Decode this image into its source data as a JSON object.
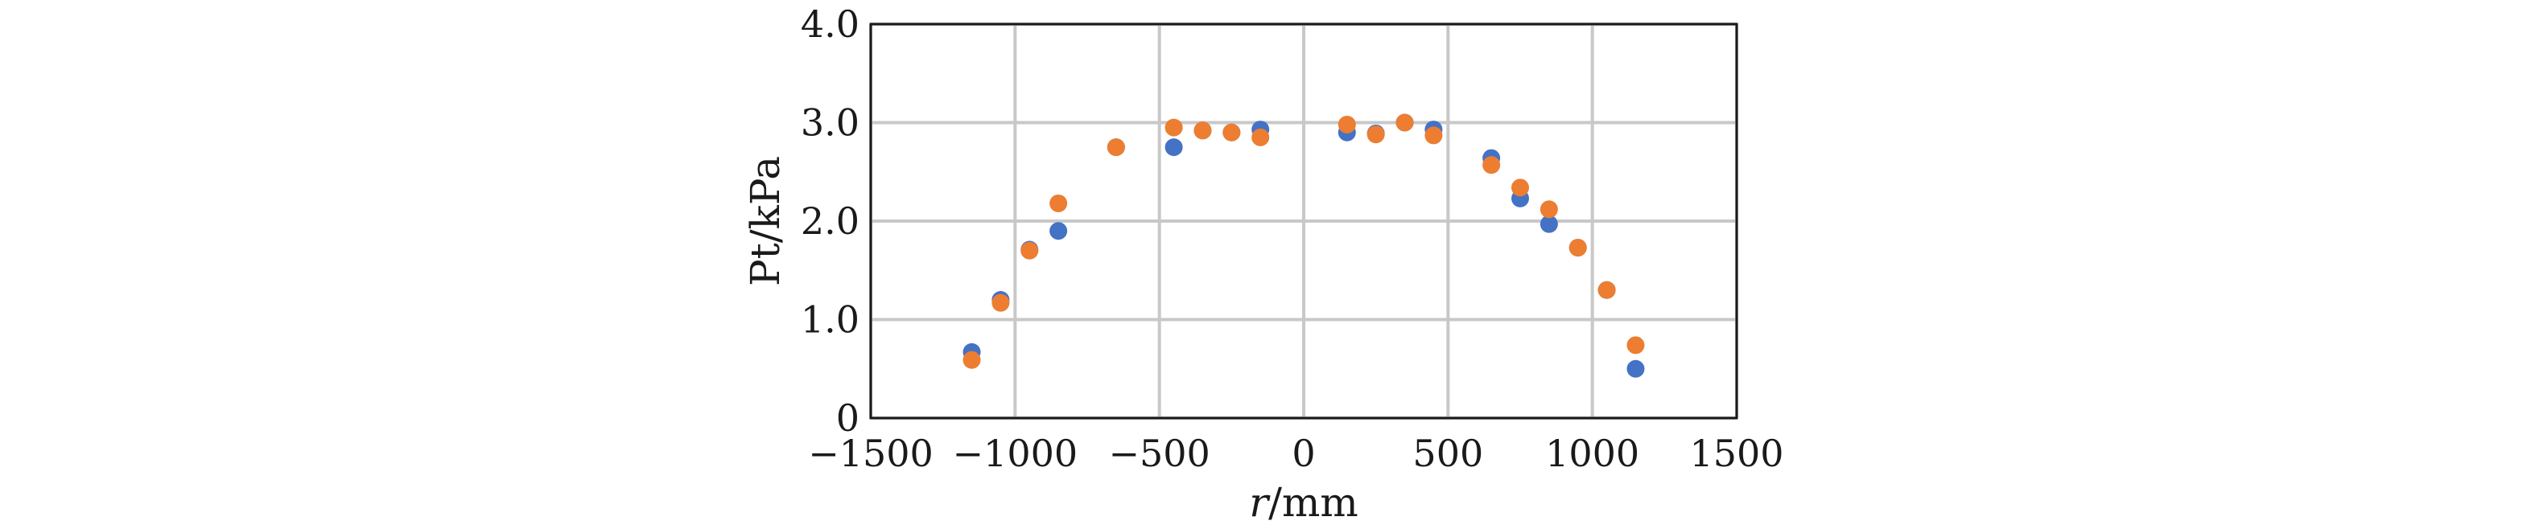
{
  "chart_data": {
    "type": "scatter",
    "title": "",
    "xlabel": "r/mm",
    "ylabel": "Pt/kPa",
    "xlim": [
      -1500,
      1500
    ],
    "ylim": [
      0,
      4
    ],
    "x_ticks": [
      -1500,
      -1000,
      -500,
      0,
      500,
      1000,
      1500
    ],
    "y_ticks": [
      0,
      1,
      2,
      3,
      4
    ],
    "x_tick_labels": [
      "−1500",
      "−1000",
      "−500",
      "0",
      "500",
      "1000",
      "1500"
    ],
    "y_tick_labels": [
      "0",
      "1.0",
      "2.0",
      "3.0",
      "4.0"
    ],
    "grid": true,
    "legend": "none",
    "series": [
      {
        "color": "#4472c4",
        "points": [
          {
            "x": -1150,
            "y": 0.67
          },
          {
            "x": -1050,
            "y": 1.2
          },
          {
            "x": -950,
            "y": 1.71
          },
          {
            "x": -850,
            "y": 1.9
          },
          {
            "x": -650,
            "y": 2.75
          },
          {
            "x": -450,
            "y": 2.75
          },
          {
            "x": -350,
            "y": 2.92
          },
          {
            "x": -250,
            "y": 2.9
          },
          {
            "x": -150,
            "y": 2.93
          },
          {
            "x": 150,
            "y": 2.9
          },
          {
            "x": 250,
            "y": 2.89
          },
          {
            "x": 350,
            "y": 3.0
          },
          {
            "x": 450,
            "y": 2.93
          },
          {
            "x": 650,
            "y": 2.64
          },
          {
            "x": 750,
            "y": 2.23
          },
          {
            "x": 850,
            "y": 1.97
          },
          {
            "x": 950,
            "y": 1.73
          },
          {
            "x": 1050,
            "y": 1.3
          },
          {
            "x": 1150,
            "y": 0.5
          }
        ]
      },
      {
        "color": "#ed7d31",
        "points": [
          {
            "x": -1150,
            "y": 0.59
          },
          {
            "x": -1050,
            "y": 1.17
          },
          {
            "x": -950,
            "y": 1.7
          },
          {
            "x": -850,
            "y": 2.18
          },
          {
            "x": -650,
            "y": 2.75
          },
          {
            "x": -450,
            "y": 2.95
          },
          {
            "x": -350,
            "y": 2.92
          },
          {
            "x": -250,
            "y": 2.9
          },
          {
            "x": -150,
            "y": 2.85
          },
          {
            "x": 150,
            "y": 2.98
          },
          {
            "x": 250,
            "y": 2.88
          },
          {
            "x": 350,
            "y": 3.0
          },
          {
            "x": 450,
            "y": 2.87
          },
          {
            "x": 650,
            "y": 2.57
          },
          {
            "x": 750,
            "y": 2.34
          },
          {
            "x": 850,
            "y": 2.12
          },
          {
            "x": 950,
            "y": 1.73
          },
          {
            "x": 1050,
            "y": 1.3
          },
          {
            "x": 1150,
            "y": 0.74
          }
        ]
      }
    ]
  }
}
